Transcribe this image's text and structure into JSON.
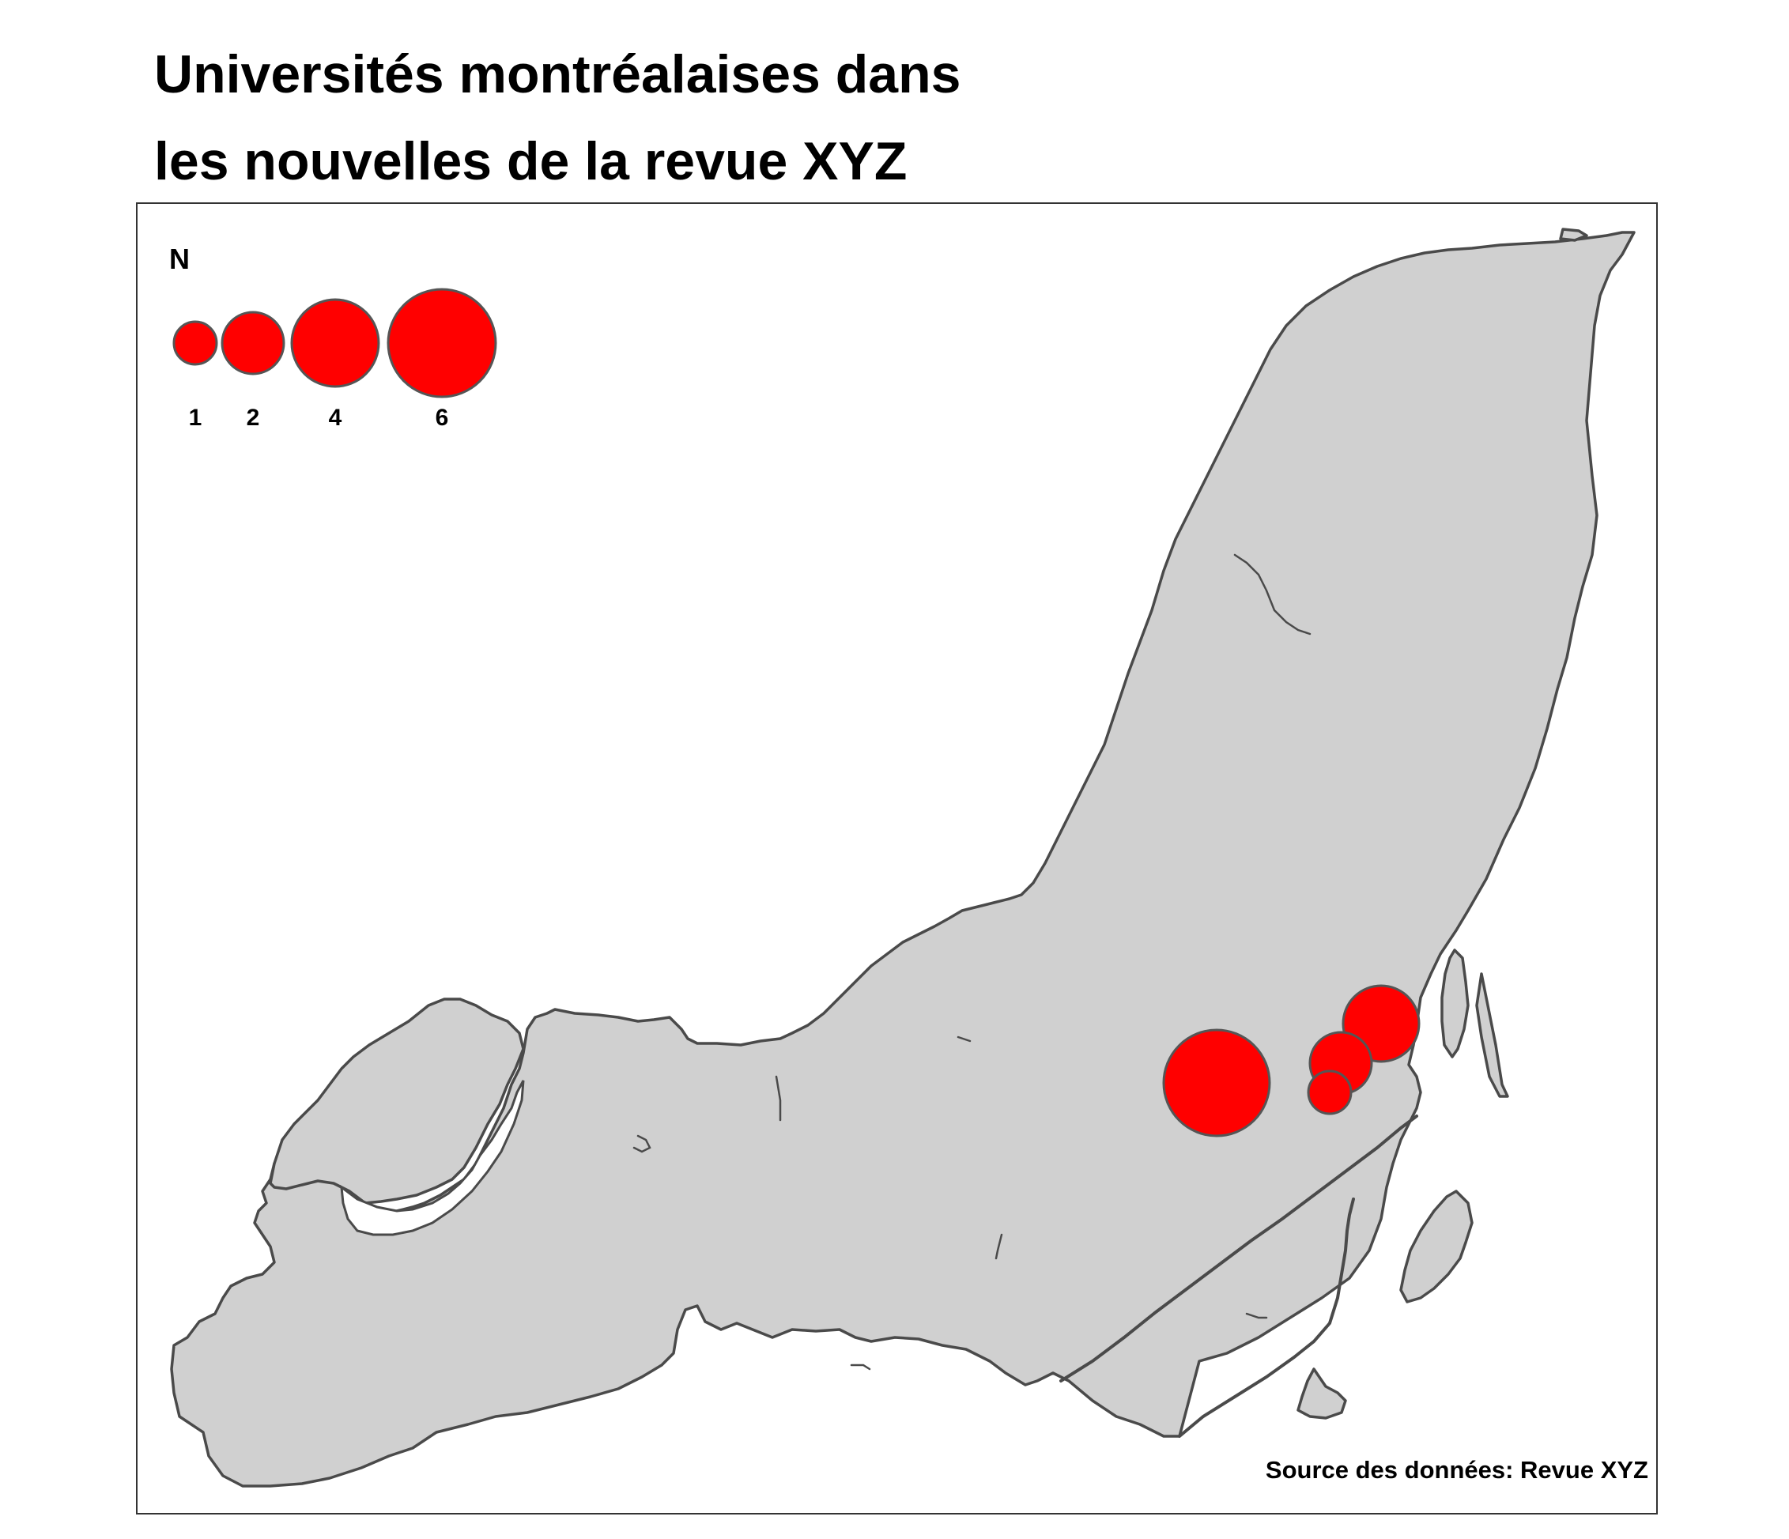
{
  "title": {
    "line1": "Universités montréalaises dans",
    "line2": "les nouvelles de la revue XYZ"
  },
  "legend": {
    "title": "N",
    "sizes": [
      {
        "value": 1,
        "label": "1"
      },
      {
        "value": 2,
        "label": "2"
      },
      {
        "value": 4,
        "label": "4"
      },
      {
        "value": 6,
        "label": "6"
      }
    ]
  },
  "source": "Source des données: Revue XYZ",
  "colors": {
    "bubble": "#ff0000",
    "bubble_stroke": "#555555",
    "land": "#d0d0d0",
    "outline": "#4a4a4a"
  },
  "map_data": {
    "type": "proportional-symbol",
    "symbols": [
      {
        "value": 6
      },
      {
        "value": 3
      },
      {
        "value": 2
      },
      {
        "value": 1
      }
    ]
  }
}
